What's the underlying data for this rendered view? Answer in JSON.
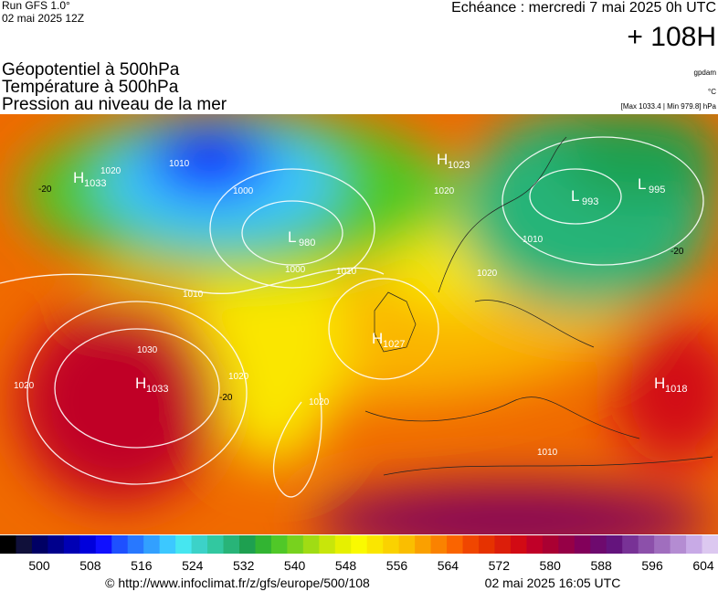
{
  "header": {
    "run": "Run GFS 1.0°",
    "date": "02 mai 2025 12Z",
    "echeance": "Echéance : mercredi 7 mai 2025 0h UTC",
    "lead": "+ 108H",
    "titles": [
      "Géopotentiel à 500hPa",
      "Température à 500hPa",
      "Pression au niveau de la mer"
    ],
    "units": [
      "gpdam",
      "°C",
      "[Max 1033.4 | Min 979.8] hPa"
    ]
  },
  "centers": [
    {
      "letter": "H",
      "value": "1033"
    },
    {
      "letter": "L",
      "value": "980"
    },
    {
      "letter": "H",
      "value": "1023"
    },
    {
      "letter": "L",
      "value": "993"
    },
    {
      "letter": "L",
      "value": "995"
    },
    {
      "letter": "H",
      "value": "1027"
    },
    {
      "letter": "H",
      "value": "1033"
    },
    {
      "letter": "H",
      "value": "1018"
    }
  ],
  "isobars": [
    "1020",
    "1010",
    "1000",
    "1000",
    "1010",
    "1030",
    "1020",
    "1020",
    "1020",
    "1010",
    "1020",
    "1020",
    "1010",
    "1010"
  ],
  "temperatures": [
    "-20",
    "-20",
    "-20"
  ],
  "colorbar": {
    "labels": [
      "500",
      "508",
      "516",
      "524",
      "532",
      "540",
      "548",
      "556",
      "564",
      "572",
      "580",
      "588",
      "596",
      "604"
    ],
    "colors": [
      "#000000",
      "#10103a",
      "#000064",
      "#00008c",
      "#0000b4",
      "#0000dc",
      "#1010ff",
      "#1e50ff",
      "#2878ff",
      "#32a0ff",
      "#3cc8ff",
      "#46e6f0",
      "#3cd2c8",
      "#32c8a0",
      "#28b478",
      "#1ea050",
      "#32b432",
      "#50c828",
      "#78d21e",
      "#a0dc14",
      "#c8e60a",
      "#e6f000",
      "#fafa00",
      "#fae600",
      "#fad200",
      "#fabe00",
      "#faa000",
      "#fa8200",
      "#fa6400",
      "#f04600",
      "#e63200",
      "#dc1e0a",
      "#d20a14",
      "#c00028",
      "#aa0032",
      "#960046",
      "#82005a",
      "#6e0a6e",
      "#64147d",
      "#783296",
      "#8c50aa",
      "#a06ebe",
      "#b48cd2",
      "#c8aae6",
      "#dcc8f0"
    ]
  },
  "footer": {
    "url": "© http://www.infoclimat.fr/z/gfs/europe/500/108",
    "stamp": "02 mai 2025 16:05 UTC"
  }
}
